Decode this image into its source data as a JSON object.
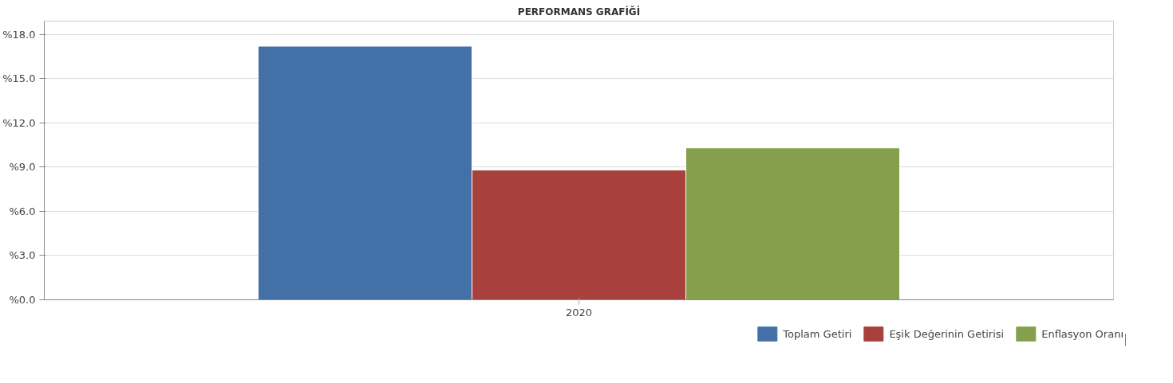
{
  "chart_data": {
    "type": "bar",
    "title": "PERFORMANS GRAFİĞİ",
    "categories": [
      "2020"
    ],
    "series": [
      {
        "name": "Toplam Getiri",
        "color": "#4470a8",
        "values": [
          17.2
        ]
      },
      {
        "name": "Eşik Değerinin Getirisi",
        "color": "#a8403d",
        "values": [
          8.8
        ]
      },
      {
        "name": "Enflasyon Oranı",
        "color": "#84a04c",
        "values": [
          10.3
        ]
      }
    ],
    "ylim": [
      0,
      18.9
    ],
    "yticks": [
      {
        "value": 0,
        "label": "%0.0"
      },
      {
        "value": 3,
        "label": "%3.0"
      },
      {
        "value": 6,
        "label": "%6.0"
      },
      {
        "value": 9,
        "label": "%9.0"
      },
      {
        "value": 12,
        "label": "%12.0"
      },
      {
        "value": 15,
        "label": "%15.0"
      },
      {
        "value": 18,
        "label": "%18.0"
      }
    ],
    "grid": "y",
    "legend": "bottom right"
  }
}
